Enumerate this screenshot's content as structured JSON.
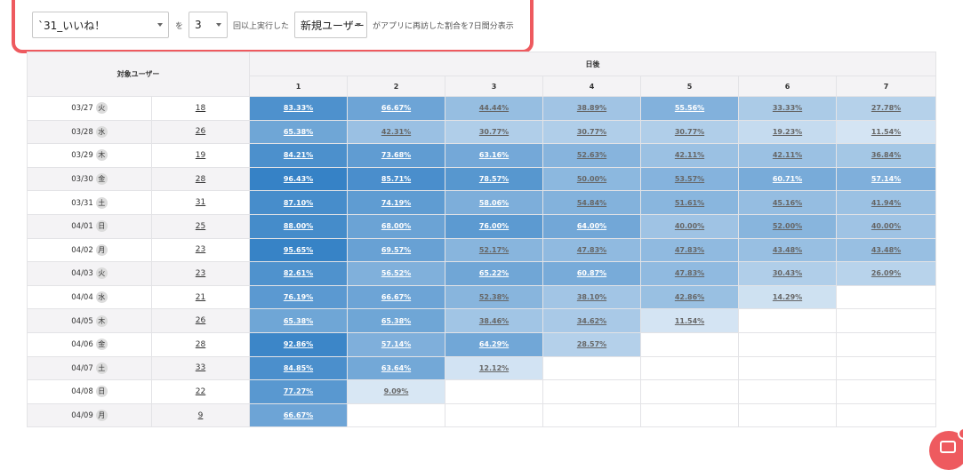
{
  "filter": {
    "event_value": "`31_いいね！",
    "text_wo": "を",
    "count_value": "3",
    "text_times": "回以上実行した",
    "user_type_value": "新規ユーザー",
    "text_suffix": "がアプリに再訪した割合を7日間分表示"
  },
  "table": {
    "header_target": "対象ユーザー",
    "header_days_after": "日後",
    "day_columns": [
      "1",
      "2",
      "3",
      "4",
      "5",
      "6",
      "7"
    ],
    "rows": [
      {
        "date": "03/27",
        "dow": "火",
        "count": "18",
        "values": [
          "83.33%",
          "66.67%",
          "44.44%",
          "38.89%",
          "55.56%",
          "33.33%",
          "27.78%"
        ]
      },
      {
        "date": "03/28",
        "dow": "水",
        "count": "26",
        "values": [
          "65.38%",
          "42.31%",
          "30.77%",
          "30.77%",
          "30.77%",
          "19.23%",
          "11.54%"
        ]
      },
      {
        "date": "03/29",
        "dow": "木",
        "count": "19",
        "values": [
          "84.21%",
          "73.68%",
          "63.16%",
          "52.63%",
          "42.11%",
          "42.11%",
          "36.84%"
        ]
      },
      {
        "date": "03/30",
        "dow": "金",
        "count": "28",
        "values": [
          "96.43%",
          "85.71%",
          "78.57%",
          "50.00%",
          "53.57%",
          "60.71%",
          "57.14%"
        ]
      },
      {
        "date": "03/31",
        "dow": "土",
        "count": "31",
        "values": [
          "87.10%",
          "74.19%",
          "58.06%",
          "54.84%",
          "51.61%",
          "45.16%",
          "41.94%"
        ]
      },
      {
        "date": "04/01",
        "dow": "日",
        "count": "25",
        "values": [
          "88.00%",
          "68.00%",
          "76.00%",
          "64.00%",
          "40.00%",
          "52.00%",
          "40.00%"
        ]
      },
      {
        "date": "04/02",
        "dow": "月",
        "count": "23",
        "values": [
          "95.65%",
          "69.57%",
          "52.17%",
          "47.83%",
          "47.83%",
          "43.48%",
          "43.48%"
        ]
      },
      {
        "date": "04/03",
        "dow": "火",
        "count": "23",
        "values": [
          "82.61%",
          "56.52%",
          "65.22%",
          "60.87%",
          "47.83%",
          "30.43%",
          "26.09%"
        ]
      },
      {
        "date": "04/04",
        "dow": "水",
        "count": "21",
        "values": [
          "76.19%",
          "66.67%",
          "52.38%",
          "38.10%",
          "42.86%",
          "14.29%",
          ""
        ]
      },
      {
        "date": "04/05",
        "dow": "木",
        "count": "26",
        "values": [
          "65.38%",
          "65.38%",
          "38.46%",
          "34.62%",
          "11.54%",
          "",
          ""
        ]
      },
      {
        "date": "04/06",
        "dow": "金",
        "count": "28",
        "values": [
          "92.86%",
          "57.14%",
          "64.29%",
          "28.57%",
          "",
          "",
          ""
        ]
      },
      {
        "date": "04/07",
        "dow": "土",
        "count": "33",
        "values": [
          "84.85%",
          "63.64%",
          "12.12%",
          "",
          "",
          "",
          ""
        ]
      },
      {
        "date": "04/08",
        "dow": "日",
        "count": "22",
        "values": [
          "77.27%",
          "9.09%",
          "",
          "",
          "",
          "",
          ""
        ]
      },
      {
        "date": "04/09",
        "dow": "月",
        "count": "9",
        "values": [
          "66.67%",
          "",
          "",
          "",
          "",
          "",
          ""
        ]
      }
    ]
  },
  "colors": {
    "highlight_border": "#ee5a5f",
    "heat_dark": "#2f7ec4",
    "heat_light": "#e9f1f9",
    "header_bg": "#f4f3f5"
  },
  "icons": {
    "select_caret": "chevron-down-icon",
    "chat": "chat-icon"
  }
}
